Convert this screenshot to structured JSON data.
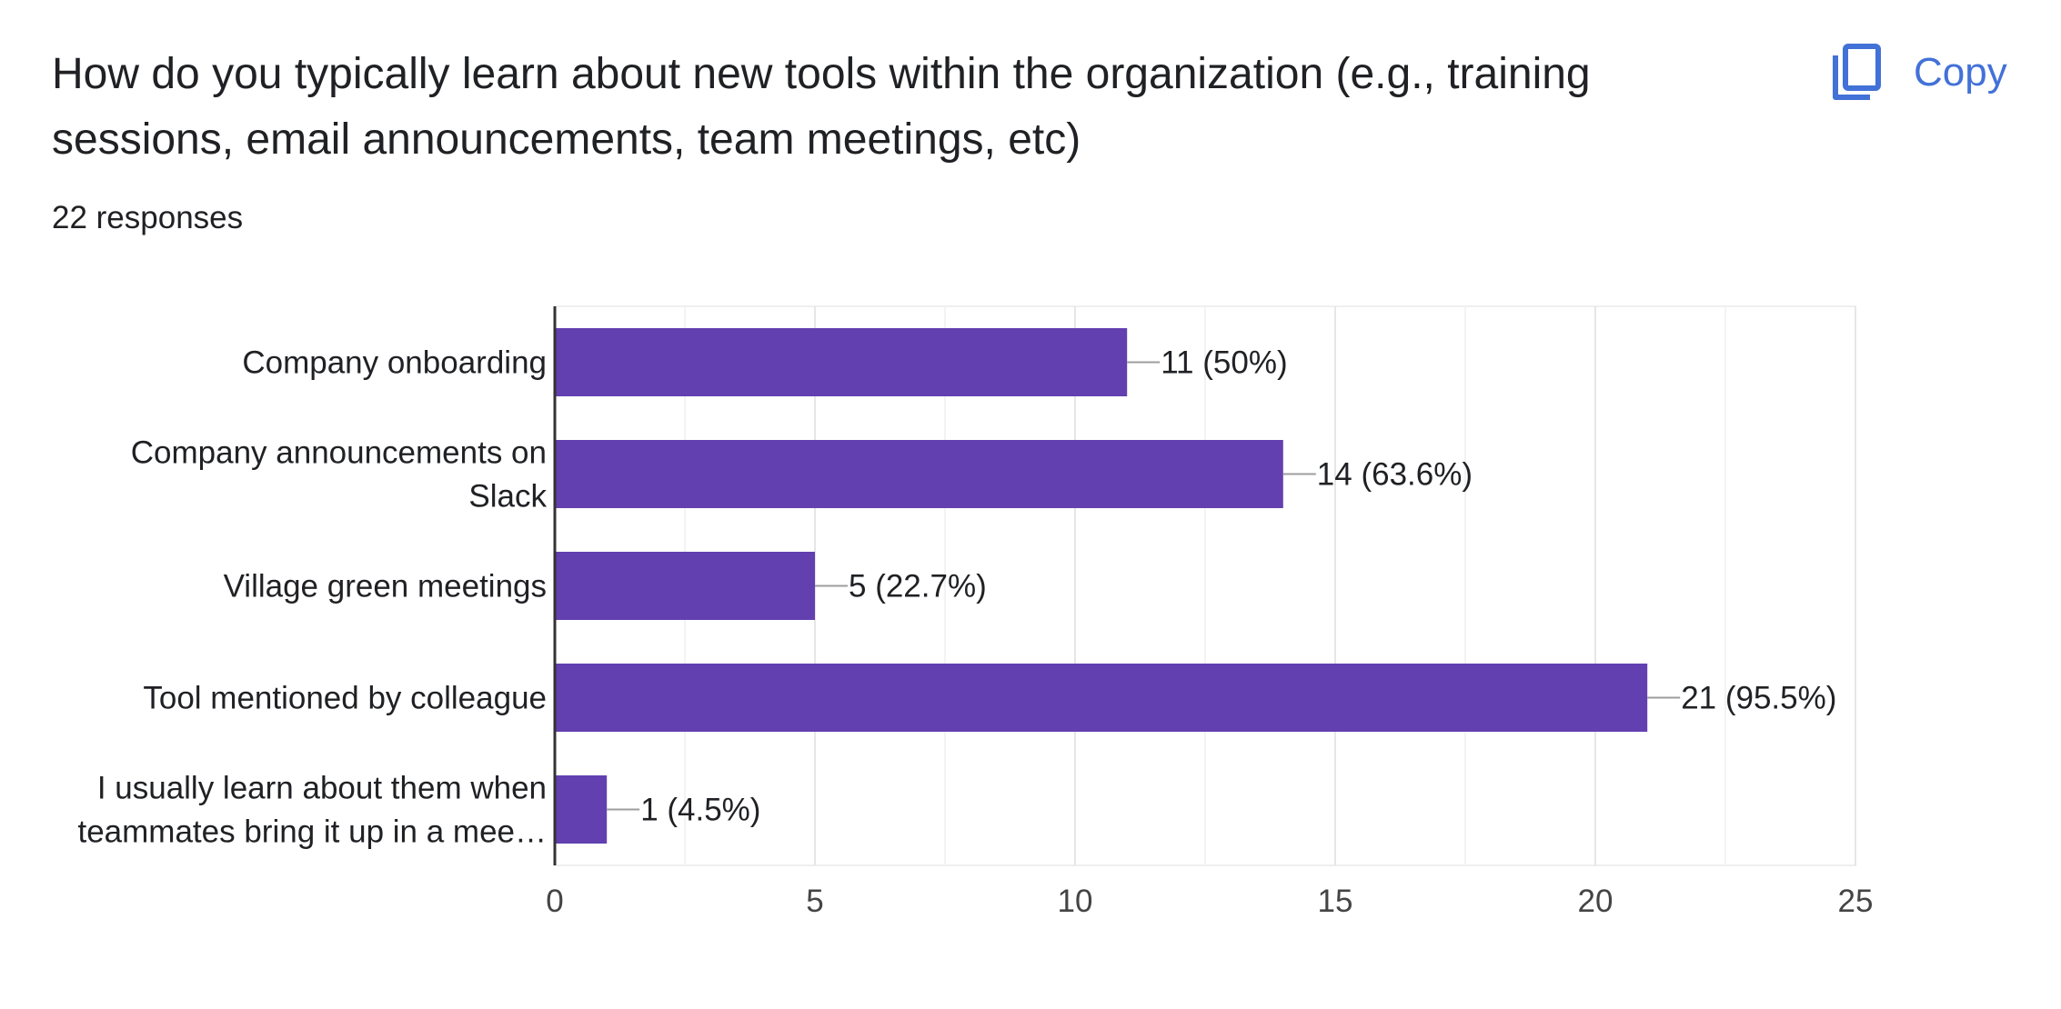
{
  "header": {
    "title": "How do you typically learn about new tools within the organization (e.g., training sessions, email announcements, team meetings, etc)",
    "responses": "22 responses",
    "copy_label": "Copy",
    "copy_icon": "copy-icon"
  },
  "colors": {
    "bar": "#6240b0",
    "copy": "#4271d8",
    "text": "#202124"
  },
  "chart_data": {
    "type": "bar",
    "orientation": "horizontal",
    "categories": [
      "Company onboarding",
      "Company announcements on Slack",
      "Village green meetings",
      "Tool mentioned by colleague",
      "I usually learn about them when teammates bring it up in a mee…"
    ],
    "category_lines": [
      [
        "Company onboarding"
      ],
      [
        "Company announcements on",
        "Slack"
      ],
      [
        "Village green meetings"
      ],
      [
        "Tool mentioned by colleague"
      ],
      [
        "I usually learn about them when",
        "teammates bring it up in a mee…"
      ]
    ],
    "values": [
      11,
      14,
      5,
      21,
      1
    ],
    "data_labels": [
      "11 (50%)",
      "14 (63.6%)",
      "5 (22.7%)",
      "21 (95.5%)",
      "1 (4.5%)"
    ],
    "xlim": [
      0,
      25
    ],
    "xticks": [
      0,
      5,
      10,
      15,
      20,
      25
    ],
    "grid": true
  }
}
